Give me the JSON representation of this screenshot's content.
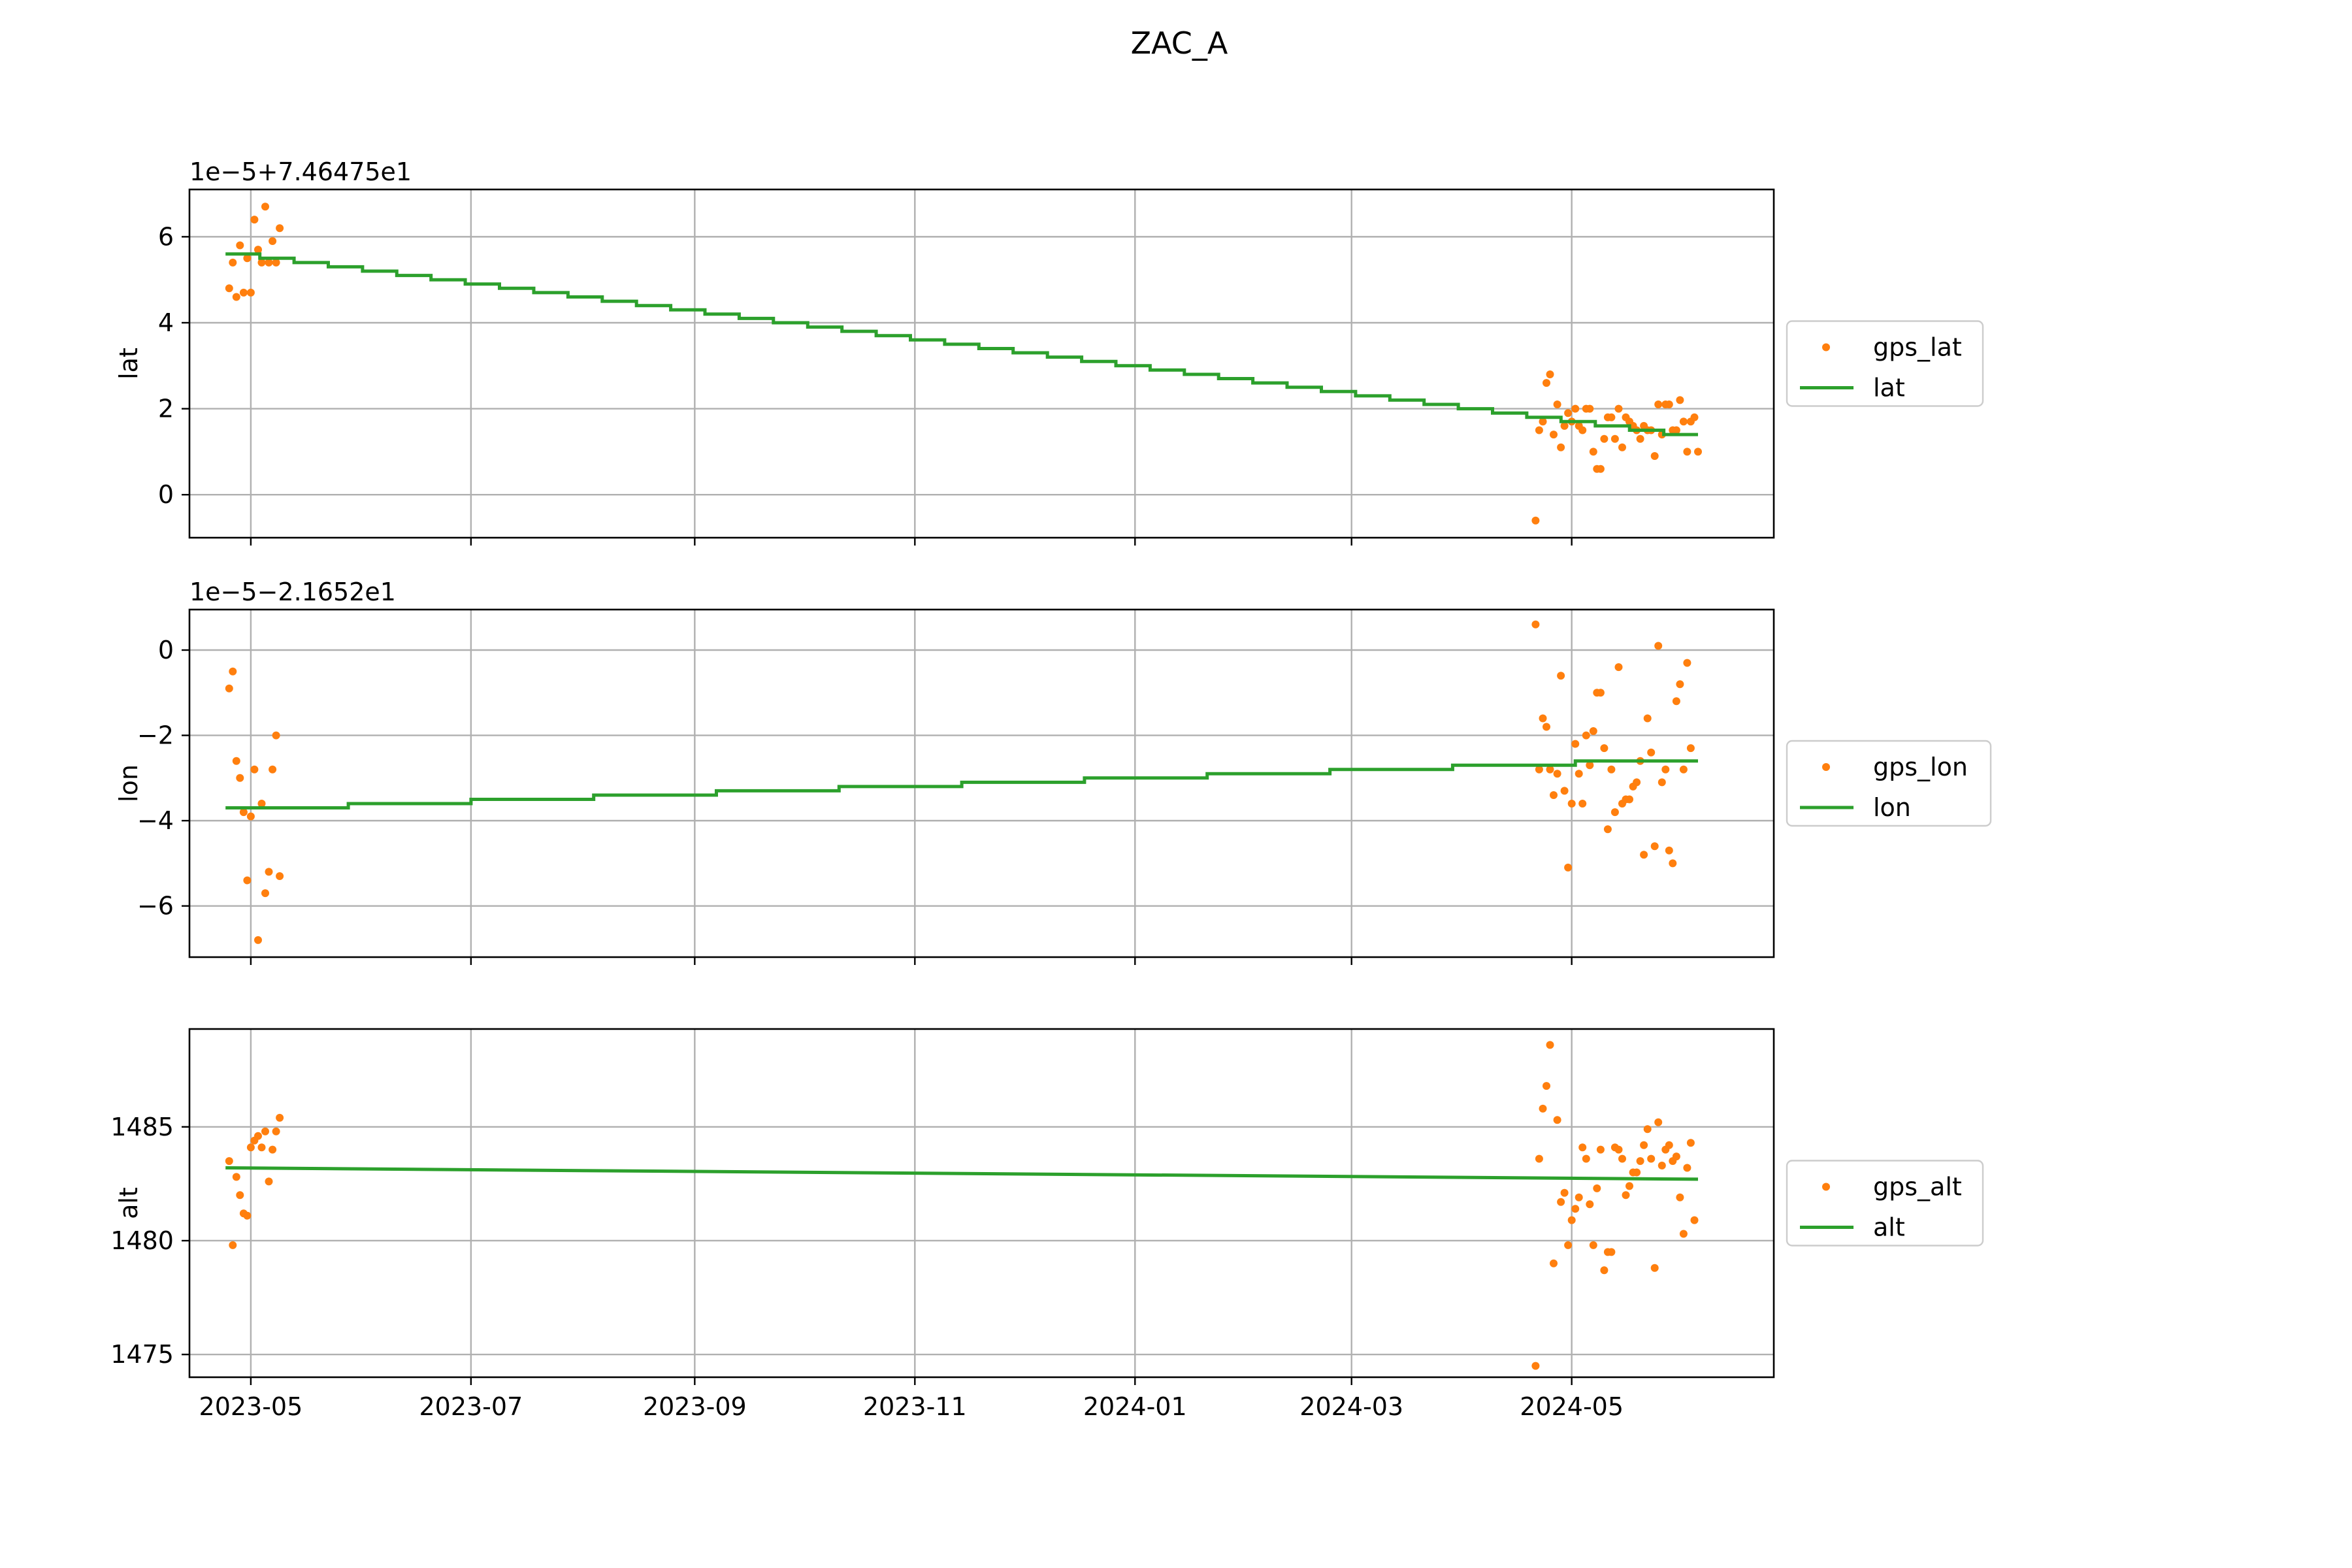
{
  "figure": {
    "title": "ZAC_A"
  },
  "chart_data": [
    {
      "type": "scatter",
      "ylabel": "lat",
      "offset_text": "1e−5+7.46475e1",
      "ylim": [
        -1.0,
        7.1
      ],
      "yticks": [
        0,
        2,
        4,
        6
      ],
      "ytick_labels": [
        "0",
        "2",
        "4",
        "6"
      ],
      "xlim": [
        "2023-04-14",
        "2024-06-26"
      ],
      "xticks": [
        "2023-05-01",
        "2023-07-01",
        "2023-09-01",
        "2023-11-01",
        "2024-01-01",
        "2024-03-01",
        "2024-05-01"
      ],
      "xtick_labels": [],
      "grid": true,
      "legend": {
        "position": "right"
      },
      "series": [
        {
          "name": "gps_lat",
          "kind": "scatter",
          "color": "#ff7f0e",
          "points": [
            [
              "2023-04-25",
              4.8
            ],
            [
              "2023-04-26",
              5.4
            ],
            [
              "2023-04-27",
              4.6
            ],
            [
              "2023-04-28",
              5.8
            ],
            [
              "2023-04-29",
              4.7
            ],
            [
              "2023-04-30",
              5.5
            ],
            [
              "2023-05-01",
              4.7
            ],
            [
              "2023-05-02",
              6.4
            ],
            [
              "2023-05-03",
              5.7
            ],
            [
              "2023-05-04",
              5.4
            ],
            [
              "2023-05-05",
              6.7
            ],
            [
              "2023-05-06",
              5.4
            ],
            [
              "2023-05-07",
              5.9
            ],
            [
              "2023-05-08",
              5.4
            ],
            [
              "2023-05-09",
              6.2
            ],
            [
              "2024-04-21",
              -0.6
            ],
            [
              "2024-04-22",
              1.5
            ],
            [
              "2024-04-23",
              1.7
            ],
            [
              "2024-04-24",
              2.6
            ],
            [
              "2024-04-25",
              2.8
            ],
            [
              "2024-04-26",
              1.4
            ],
            [
              "2024-04-27",
              2.1
            ],
            [
              "2024-04-28",
              1.1
            ],
            [
              "2024-04-29",
              1.6
            ],
            [
              "2024-04-30",
              1.9
            ],
            [
              "2024-05-01",
              1.7
            ],
            [
              "2024-05-02",
              2.0
            ],
            [
              "2024-05-03",
              1.6
            ],
            [
              "2024-05-04",
              1.5
            ],
            [
              "2024-05-05",
              2.0
            ],
            [
              "2024-05-06",
              2.0
            ],
            [
              "2024-05-07",
              1.0
            ],
            [
              "2024-05-08",
              0.6
            ],
            [
              "2024-05-09",
              0.6
            ],
            [
              "2024-05-10",
              1.3
            ],
            [
              "2024-05-11",
              1.8
            ],
            [
              "2024-05-12",
              1.8
            ],
            [
              "2024-05-13",
              1.3
            ],
            [
              "2024-05-14",
              2.0
            ],
            [
              "2024-05-15",
              1.1
            ],
            [
              "2024-05-16",
              1.8
            ],
            [
              "2024-05-17",
              1.7
            ],
            [
              "2024-05-18",
              1.6
            ],
            [
              "2024-05-19",
              1.5
            ],
            [
              "2024-05-20",
              1.3
            ],
            [
              "2024-05-21",
              1.6
            ],
            [
              "2024-05-22",
              1.5
            ],
            [
              "2024-05-23",
              1.5
            ],
            [
              "2024-05-24",
              0.9
            ],
            [
              "2024-05-25",
              2.1
            ],
            [
              "2024-05-26",
              1.4
            ],
            [
              "2024-05-27",
              2.1
            ],
            [
              "2024-05-28",
              2.1
            ],
            [
              "2024-05-29",
              1.5
            ],
            [
              "2024-05-30",
              1.5
            ],
            [
              "2024-05-31",
              2.2
            ],
            [
              "2024-06-01",
              1.7
            ],
            [
              "2024-06-02",
              1.0
            ],
            [
              "2024-06-03",
              1.7
            ],
            [
              "2024-06-04",
              1.8
            ],
            [
              "2024-06-05",
              1.0
            ]
          ]
        },
        {
          "name": "lat",
          "kind": "step",
          "color": "#2ca02c",
          "x": [
            "2023-04-24",
            "2024-06-05"
          ],
          "y_start": 5.6,
          "y_end": 1.4,
          "y_step": 0.1
        }
      ]
    },
    {
      "type": "scatter",
      "ylabel": "lon",
      "offset_text": "1e−5−2.1652e1",
      "ylim": [
        -7.2,
        0.95
      ],
      "yticks": [
        -6,
        -4,
        -2,
        0
      ],
      "ytick_labels": [
        "−6",
        "−4",
        "−2",
        "0"
      ],
      "xlim": [
        "2023-04-14",
        "2024-06-26"
      ],
      "xticks": [
        "2023-05-01",
        "2023-07-01",
        "2023-09-01",
        "2023-11-01",
        "2024-01-01",
        "2024-03-01",
        "2024-05-01"
      ],
      "xtick_labels": [],
      "grid": true,
      "legend": {
        "position": "right"
      },
      "series": [
        {
          "name": "gps_lon",
          "kind": "scatter",
          "color": "#ff7f0e",
          "points": [
            [
              "2023-04-25",
              -0.9
            ],
            [
              "2023-04-26",
              -0.5
            ],
            [
              "2023-04-27",
              -2.6
            ],
            [
              "2023-04-28",
              -3.0
            ],
            [
              "2023-04-29",
              -3.8
            ],
            [
              "2023-04-30",
              -5.4
            ],
            [
              "2023-05-01",
              -3.9
            ],
            [
              "2023-05-02",
              -2.8
            ],
            [
              "2023-05-03",
              -6.8
            ],
            [
              "2023-05-04",
              -3.6
            ],
            [
              "2023-05-05",
              -5.7
            ],
            [
              "2023-05-06",
              -5.2
            ],
            [
              "2023-05-07",
              -2.8
            ],
            [
              "2023-05-08",
              -2.0
            ],
            [
              "2023-05-09",
              -5.3
            ],
            [
              "2024-04-21",
              0.6
            ],
            [
              "2024-04-22",
              -2.8
            ],
            [
              "2024-04-23",
              -1.6
            ],
            [
              "2024-04-24",
              -1.8
            ],
            [
              "2024-04-25",
              -2.8
            ],
            [
              "2024-04-26",
              -3.4
            ],
            [
              "2024-04-27",
              -2.9
            ],
            [
              "2024-04-28",
              -0.6
            ],
            [
              "2024-04-29",
              -3.3
            ],
            [
              "2024-04-30",
              -5.1
            ],
            [
              "2024-05-01",
              -3.6
            ],
            [
              "2024-05-02",
              -2.2
            ],
            [
              "2024-05-03",
              -2.9
            ],
            [
              "2024-05-04",
              -3.6
            ],
            [
              "2024-05-05",
              -2.0
            ],
            [
              "2024-05-06",
              -2.7
            ],
            [
              "2024-05-07",
              -1.9
            ],
            [
              "2024-05-08",
              -1.0
            ],
            [
              "2024-05-09",
              -1.0
            ],
            [
              "2024-05-10",
              -2.3
            ],
            [
              "2024-05-11",
              -4.2
            ],
            [
              "2024-05-12",
              -2.8
            ],
            [
              "2024-05-13",
              -3.8
            ],
            [
              "2024-05-14",
              -0.4
            ],
            [
              "2024-05-15",
              -3.6
            ],
            [
              "2024-05-16",
              -3.5
            ],
            [
              "2024-05-17",
              -3.5
            ],
            [
              "2024-05-18",
              -3.2
            ],
            [
              "2024-05-19",
              -3.1
            ],
            [
              "2024-05-20",
              -2.6
            ],
            [
              "2024-05-21",
              -4.8
            ],
            [
              "2024-05-22",
              -1.6
            ],
            [
              "2024-05-23",
              -2.4
            ],
            [
              "2024-05-24",
              -4.6
            ],
            [
              "2024-05-25",
              0.1
            ],
            [
              "2024-05-26",
              -3.1
            ],
            [
              "2024-05-27",
              -2.8
            ],
            [
              "2024-05-28",
              -4.7
            ],
            [
              "2024-05-29",
              -5.0
            ],
            [
              "2024-05-30",
              -1.2
            ],
            [
              "2024-05-31",
              -0.8
            ],
            [
              "2024-06-01",
              -2.8
            ],
            [
              "2024-06-02",
              -0.3
            ],
            [
              "2024-06-03",
              -2.3
            ]
          ]
        },
        {
          "name": "lon",
          "kind": "step",
          "color": "#2ca02c",
          "x": [
            "2023-04-24",
            "2024-06-05"
          ],
          "y_start": -3.7,
          "y_end": -2.6,
          "y_step": 0.1
        }
      ]
    },
    {
      "type": "scatter",
      "ylabel": "alt",
      "offset_text": "",
      "ylim": [
        1474.0,
        1489.3
      ],
      "yticks": [
        1475,
        1480,
        1485
      ],
      "ytick_labels": [
        "1475",
        "1480",
        "1485"
      ],
      "xlim": [
        "2023-04-14",
        "2024-06-26"
      ],
      "xticks": [
        "2023-05-01",
        "2023-07-01",
        "2023-09-01",
        "2023-11-01",
        "2024-01-01",
        "2024-03-01",
        "2024-05-01"
      ],
      "xtick_labels": [
        "2023-05",
        "2023-07",
        "2023-09",
        "2023-11",
        "2024-01",
        "2024-03",
        "2024-05"
      ],
      "grid": true,
      "legend": {
        "position": "right"
      },
      "series": [
        {
          "name": "gps_alt",
          "kind": "scatter",
          "color": "#ff7f0e",
          "points": [
            [
              "2023-04-25",
              1483.5
            ],
            [
              "2023-04-26",
              1479.8
            ],
            [
              "2023-04-27",
              1482.8
            ],
            [
              "2023-04-28",
              1482.0
            ],
            [
              "2023-04-29",
              1481.2
            ],
            [
              "2023-04-30",
              1481.1
            ],
            [
              "2023-05-01",
              1484.1
            ],
            [
              "2023-05-02",
              1484.4
            ],
            [
              "2023-05-03",
              1484.6
            ],
            [
              "2023-05-04",
              1484.1
            ],
            [
              "2023-05-05",
              1484.8
            ],
            [
              "2023-05-06",
              1482.6
            ],
            [
              "2023-05-07",
              1484.0
            ],
            [
              "2023-05-08",
              1484.8
            ],
            [
              "2023-05-09",
              1485.4
            ],
            [
              "2024-04-21",
              1474.5
            ],
            [
              "2024-04-22",
              1483.6
            ],
            [
              "2024-04-23",
              1485.8
            ],
            [
              "2024-04-24",
              1486.8
            ],
            [
              "2024-04-25",
              1488.6
            ],
            [
              "2024-04-26",
              1479.0
            ],
            [
              "2024-04-27",
              1485.3
            ],
            [
              "2024-04-28",
              1481.7
            ],
            [
              "2024-04-29",
              1482.1
            ],
            [
              "2024-04-30",
              1479.8
            ],
            [
              "2024-05-01",
              1480.9
            ],
            [
              "2024-05-02",
              1481.4
            ],
            [
              "2024-05-03",
              1481.9
            ],
            [
              "2024-05-04",
              1484.1
            ],
            [
              "2024-05-05",
              1483.6
            ],
            [
              "2024-05-06",
              1481.6
            ],
            [
              "2024-05-07",
              1479.8
            ],
            [
              "2024-05-08",
              1482.3
            ],
            [
              "2024-05-09",
              1484.0
            ],
            [
              "2024-05-10",
              1478.7
            ],
            [
              "2024-05-11",
              1479.5
            ],
            [
              "2024-05-12",
              1479.5
            ],
            [
              "2024-05-13",
              1484.1
            ],
            [
              "2024-05-14",
              1484.0
            ],
            [
              "2024-05-15",
              1483.6
            ],
            [
              "2024-05-16",
              1482.0
            ],
            [
              "2024-05-17",
              1482.4
            ],
            [
              "2024-05-18",
              1483.0
            ],
            [
              "2024-05-19",
              1483.0
            ],
            [
              "2024-05-20",
              1483.5
            ],
            [
              "2024-05-21",
              1484.2
            ],
            [
              "2024-05-22",
              1484.9
            ],
            [
              "2024-05-23",
              1483.6
            ],
            [
              "2024-05-24",
              1478.8
            ],
            [
              "2024-05-25",
              1485.2
            ],
            [
              "2024-05-26",
              1483.3
            ],
            [
              "2024-05-27",
              1484.0
            ],
            [
              "2024-05-28",
              1484.2
            ],
            [
              "2024-05-29",
              1483.5
            ],
            [
              "2024-05-30",
              1483.7
            ],
            [
              "2024-05-31",
              1481.9
            ],
            [
              "2024-06-01",
              1480.3
            ],
            [
              "2024-06-02",
              1483.2
            ],
            [
              "2024-06-03",
              1484.3
            ],
            [
              "2024-06-04",
              1480.9
            ]
          ]
        },
        {
          "name": "alt",
          "kind": "line",
          "color": "#2ca02c",
          "points": [
            [
              "2023-04-24",
              1483.2
            ],
            [
              "2024-06-05",
              1482.7
            ]
          ]
        }
      ]
    }
  ]
}
